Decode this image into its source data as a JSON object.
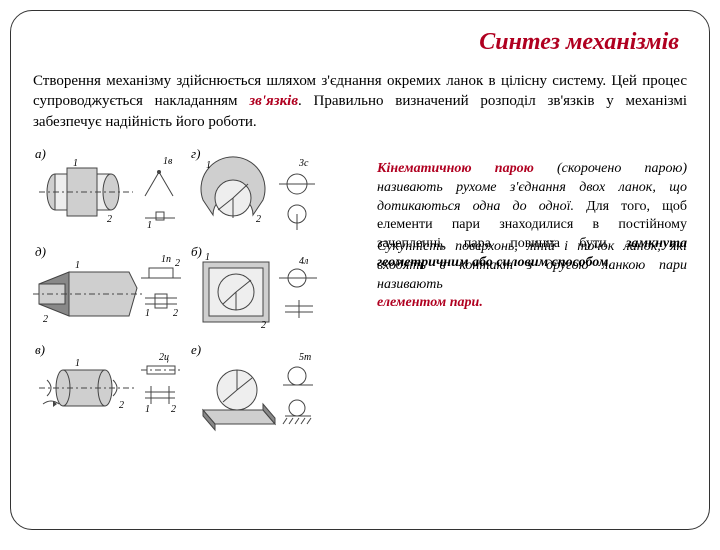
{
  "colors": {
    "accent": "#b00020",
    "text": "#000000",
    "figure_stroke": "#444444",
    "figure_fill_light": "#eeeeee",
    "figure_fill_mid": "#cfcfcf",
    "figure_fill_dark": "#888888"
  },
  "title": "Синтез механізмів",
  "intro": {
    "t1": "Створення механізму здійснюється шляхом з'єднання окремих ланок в цілісну систему. Цей процес супроводжується накладанням ",
    "linkword": "зв'язків",
    "t2": ". Правильно визначений розподіл зв'язків у механізмі забезпечує надійність його роботи."
  },
  "right": {
    "p1_term": "Кінематичною парою",
    "p1_it": " (скорочено парою) називають рухоме з'єднання двох ланок, що дотикаються одна до одної.",
    "p1_plain": " Для того, щоб елементи пари знаходилися в постійному зачепленні, пара повинна бути ",
    "p1_bold": "замкнута геометричним або силовим способом",
    "p1_end": ".",
    "p2_it": "Сукупність поверхонь, ліній і точок ланок, які входять в контакт з другою ланкою пари називають ",
    "p2_term": "елементом пари."
  },
  "figure": {
    "row_labels": [
      "а)",
      "г)"
    ],
    "row2_labels": [
      "д)",
      "б)"
    ],
    "row3_labels": [
      "в)",
      "е)"
    ],
    "small_labels": [
      "1в",
      "1",
      "1",
      "1",
      "2",
      "3с",
      "1п",
      "2",
      "1",
      "2",
      "4л",
      "2ц",
      "1",
      "2",
      "5т"
    ],
    "numerals": [
      "1",
      "2"
    ]
  }
}
